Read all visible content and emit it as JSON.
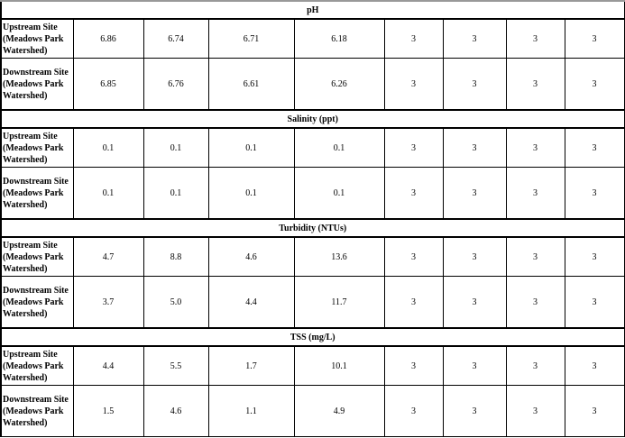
{
  "sections": [
    {
      "title": "pH",
      "rows": [
        {
          "site": "Upstream Site (Meadows Park Watershed)",
          "values": [
            "6.86",
            "6.74",
            "6.71",
            "6.18",
            "3",
            "3",
            "3",
            "3"
          ]
        },
        {
          "site": "Downstream Site (Meadows Park Watershed)",
          "values": [
            "6.85",
            "6.76",
            "6.61",
            "6.26",
            "3",
            "3",
            "3",
            "3"
          ]
        }
      ]
    },
    {
      "title": "Salinity (ppt)",
      "rows": [
        {
          "site": "Upstream Site (Meadows Park Watershed)",
          "values": [
            "0.1",
            "0.1",
            "0.1",
            "0.1",
            "3",
            "3",
            "3",
            "3"
          ]
        },
        {
          "site": "Downstream Site (Meadows Park Watershed)",
          "values": [
            "0.1",
            "0.1",
            "0.1",
            "0.1",
            "3",
            "3",
            "3",
            "3"
          ]
        }
      ]
    },
    {
      "title": "Turbidity (NTUs)",
      "rows": [
        {
          "site": "Upstream Site (Meadows Park Watershed)",
          "values": [
            "4.7",
            "8.8",
            "4.6",
            "13.6",
            "3",
            "3",
            "3",
            "3"
          ]
        },
        {
          "site": "Downstream Site (Meadows Park Watershed)",
          "values": [
            "3.7",
            "5.0",
            "4.4",
            "11.7",
            "3",
            "3",
            "3",
            "3"
          ]
        }
      ]
    },
    {
      "title": "TSS (mg/L)",
      "rows": [
        {
          "site": "Upstream Site (Meadows Park Watershed)",
          "values": [
            "4.4",
            "5.5",
            "1.7",
            "10.1",
            "3",
            "3",
            "3",
            "3"
          ]
        },
        {
          "site": "Downstream Site (Meadows Park Watershed)",
          "values": [
            "1.5",
            "4.6",
            "1.1",
            "4.9",
            "3",
            "3",
            "3",
            "3"
          ]
        }
      ]
    }
  ]
}
